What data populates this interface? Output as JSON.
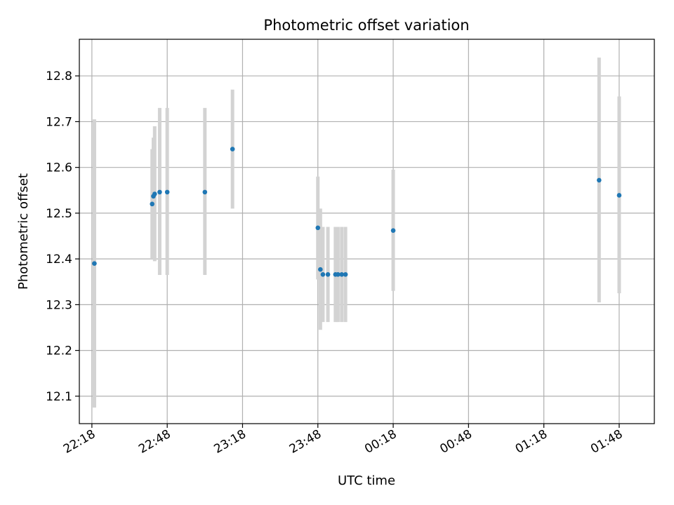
{
  "chart_data": {
    "type": "scatter",
    "title": "Photometric offset variation",
    "xlabel": "UTC time",
    "ylabel": "Photometric offset",
    "x_unit": "minutes",
    "xlim": [
      "22:13",
      "02:02"
    ],
    "ylim": [
      12.04,
      12.88
    ],
    "x_ticks": [
      "22:18",
      "22:48",
      "23:18",
      "23:48",
      "00:18",
      "00:48",
      "01:18",
      "01:48"
    ],
    "y_ticks": [
      12.1,
      12.2,
      12.3,
      12.4,
      12.5,
      12.6,
      12.7,
      12.8
    ],
    "grid": true,
    "colors": {
      "point": "#1f77b4",
      "errorbar": "#d3d3d3",
      "grid": "#b0b0b0",
      "axis": "#000000"
    },
    "points": [
      {
        "x": "22:19",
        "y": 12.39,
        "ylo": 12.075,
        "yhi": 12.705
      },
      {
        "x": "22:42",
        "y": 12.52,
        "ylo": 12.4,
        "yhi": 12.64
      },
      {
        "x": "22:42.5",
        "y": 12.537,
        "ylo": 12.41,
        "yhi": 12.665
      },
      {
        "x": "22:43",
        "y": 12.542,
        "ylo": 12.395,
        "yhi": 12.69
      },
      {
        "x": "22:45",
        "y": 12.546,
        "ylo": 12.365,
        "yhi": 12.73
      },
      {
        "x": "22:48",
        "y": 12.546,
        "ylo": 12.365,
        "yhi": 12.73
      },
      {
        "x": "23:03",
        "y": 12.546,
        "ylo": 12.365,
        "yhi": 12.73
      },
      {
        "x": "23:14",
        "y": 12.64,
        "ylo": 12.51,
        "yhi": 12.77
      },
      {
        "x": "23:48",
        "y": 12.468,
        "ylo": 12.355,
        "yhi": 12.58
      },
      {
        "x": "23:49",
        "y": 12.377,
        "ylo": 12.245,
        "yhi": 12.51
      },
      {
        "x": "23:50",
        "y": 12.366,
        "ylo": 12.262,
        "yhi": 12.47
      },
      {
        "x": "23:52",
        "y": 12.366,
        "ylo": 12.262,
        "yhi": 12.47
      },
      {
        "x": "23:55",
        "y": 12.366,
        "ylo": 12.262,
        "yhi": 12.47
      },
      {
        "x": "23:56",
        "y": 12.366,
        "ylo": 12.262,
        "yhi": 12.47
      },
      {
        "x": "23:57.5",
        "y": 12.366,
        "ylo": 12.262,
        "yhi": 12.47
      },
      {
        "x": "23:59",
        "y": 12.366,
        "ylo": 12.262,
        "yhi": 12.47
      },
      {
        "x": "00:18",
        "y": 12.462,
        "ylo": 12.33,
        "yhi": 12.595
      },
      {
        "x": "01:40",
        "y": 12.572,
        "ylo": 12.305,
        "yhi": 12.84
      },
      {
        "x": "01:48",
        "y": 12.539,
        "ylo": 12.325,
        "yhi": 12.755
      }
    ]
  }
}
